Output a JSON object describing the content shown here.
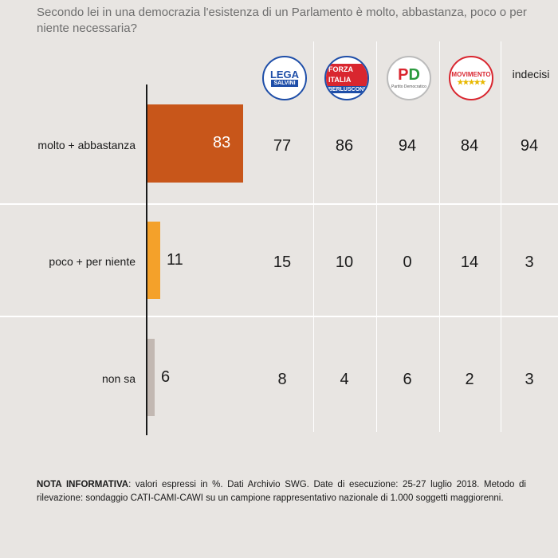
{
  "question": "Secondo lei in una democrazia l'esistenza di un Parlamento è  molto, abbastanza, poco o per niente necessaria?",
  "parties": [
    {
      "id": "lega",
      "logo_text": "LEGA",
      "logo_sub": "SALVINI",
      "icon": "lega-salvini-logo"
    },
    {
      "id": "fi",
      "logo_text": "FORZA ITALIA",
      "logo_sub": "BERLUSCONI",
      "icon": "forza-italia-logo"
    },
    {
      "id": "pd",
      "logo_text": "PD",
      "logo_sub": "Partito Democratico",
      "icon": "partito-democratico-logo"
    },
    {
      "id": "m5s",
      "logo_text": "MOVIMENTO",
      "logo_sub": "★★★★★",
      "icon": "movimento-5-stelle-logo"
    },
    {
      "id": "undecided",
      "label": "indecisi"
    }
  ],
  "colors": {
    "bar_molto": "#c8561a",
    "bar_poco": "#f4a12a",
    "bar_nonsa": "#c2b8b2",
    "background": "#e8e5e2"
  },
  "chart_data": {
    "type": "bar",
    "categories": [
      "molto + abbastanza",
      "poco + per niente",
      "non sa"
    ],
    "values": [
      83,
      11,
      6
    ],
    "table": {
      "columns": [
        "Lega",
        "Forza Italia",
        "PD",
        "M5S",
        "indecisi"
      ],
      "rows": [
        [
          77,
          86,
          94,
          84,
          94
        ],
        [
          15,
          10,
          0,
          14,
          3
        ],
        [
          8,
          4,
          6,
          2,
          3
        ]
      ]
    }
  },
  "note": {
    "label": "NOTA INFORMATIVA",
    "text": ": valori espressi in %. Dati Archivio SWG. Date di esecuzione: 25-27 luglio 2018. Metodo di rilevazione: sondaggio CATI-CAMI-CAWI su un campione rappresentativo nazionale di 1.000 soggetti maggiorenni."
  }
}
